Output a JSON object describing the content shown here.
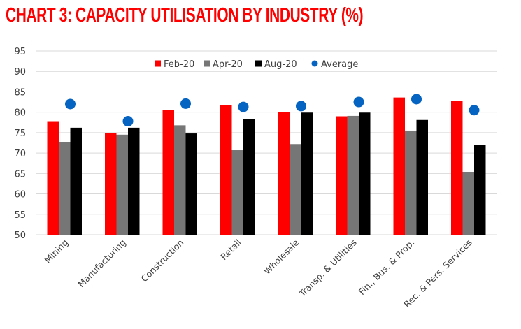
{
  "chart_data": {
    "type": "bar",
    "title": "CHART 3: CAPACITY UTILISATION BY INDUSTRY (%)",
    "xlabel": "",
    "ylabel": "",
    "ylim": [
      50,
      95
    ],
    "yticks": [
      50,
      55,
      60,
      65,
      70,
      75,
      80,
      85,
      90,
      95
    ],
    "grid": true,
    "legend_position": "top-center",
    "categories": [
      "Mining",
      "Manufacturing",
      "Construction",
      "Retail",
      "Wholesale",
      "Transp. & Utilities",
      "Fin., Bus. & Prop.",
      "Rec. & Pers. Services"
    ],
    "series": [
      {
        "name": "Feb-20",
        "kind": "bar",
        "color": "#ff0000",
        "values": [
          77.8,
          74.9,
          80.6,
          81.7,
          80.1,
          79.0,
          83.6,
          82.7
        ]
      },
      {
        "name": "Apr-20",
        "kind": "bar",
        "color": "#767676",
        "values": [
          72.7,
          74.5,
          76.8,
          70.7,
          72.2,
          79.1,
          75.5,
          65.4
        ]
      },
      {
        "name": "Aug-20",
        "kind": "bar",
        "color": "#000000",
        "values": [
          76.2,
          76.2,
          74.8,
          78.4,
          79.9,
          79.9,
          78.1,
          71.9
        ]
      },
      {
        "name": "Average",
        "kind": "marker",
        "color": "#0563c1",
        "values": [
          82.0,
          77.8,
          82.1,
          81.3,
          81.5,
          82.5,
          83.2,
          80.5
        ]
      }
    ]
  }
}
